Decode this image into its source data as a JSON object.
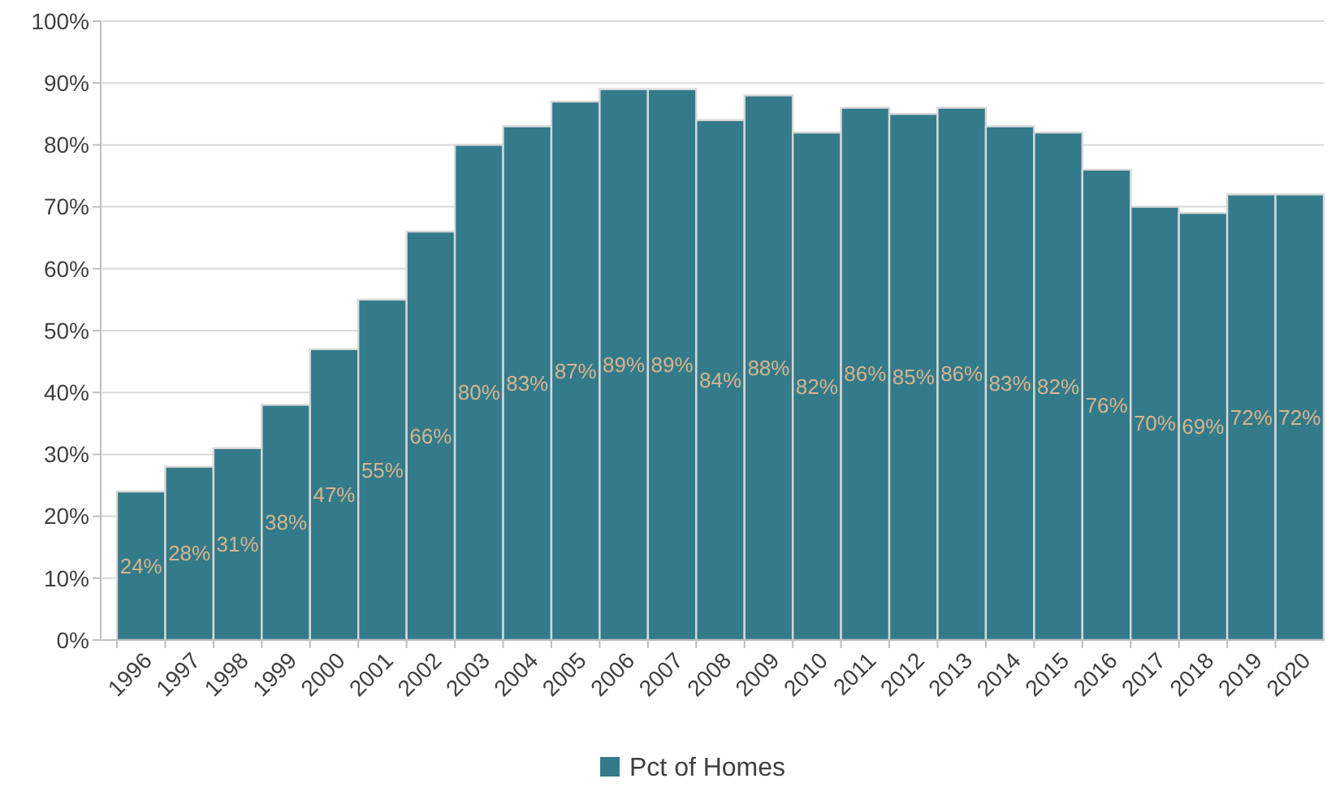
{
  "chart_data": {
    "type": "bar",
    "categories": [
      "1996",
      "1997",
      "1998",
      "1999",
      "2000",
      "2001",
      "2002",
      "2003",
      "2004",
      "2005",
      "2006",
      "2007",
      "2008",
      "2009",
      "2010",
      "2011",
      "2012",
      "2013",
      "2014",
      "2015",
      "2016",
      "2017",
      "2018",
      "2019",
      "2020"
    ],
    "series": [
      {
        "name": "Pct of Homes",
        "color": "#337b8a",
        "values": [
          24,
          28,
          31,
          38,
          47,
          55,
          66,
          80,
          83,
          87,
          89,
          89,
          84,
          88,
          82,
          86,
          85,
          86,
          83,
          82,
          76,
          70,
          69,
          72,
          72
        ],
        "value_labels": [
          "24%",
          "28%",
          "31%",
          "38%",
          "47%",
          "55%",
          "66%",
          "80%",
          "83%",
          "87%",
          "89%",
          "89%",
          "84%",
          "88%",
          "82%",
          "86%",
          "85%",
          "86%",
          "83%",
          "82%",
          "76%",
          "70%",
          "69%",
          "72%",
          "72%"
        ]
      }
    ],
    "ylim": [
      0,
      100
    ],
    "yticks": [
      {
        "value": 0,
        "label": "0%"
      },
      {
        "value": 10,
        "label": "10%"
      },
      {
        "value": 20,
        "label": "20%"
      },
      {
        "value": 30,
        "label": "30%"
      },
      {
        "value": 40,
        "label": "40%"
      },
      {
        "value": 50,
        "label": "50%"
      },
      {
        "value": 60,
        "label": "60%"
      },
      {
        "value": 70,
        "label": "70%"
      },
      {
        "value": 80,
        "label": "80%"
      },
      {
        "value": 90,
        "label": "90%"
      },
      {
        "value": 100,
        "label": "100%"
      }
    ],
    "grid": "y",
    "legend": "bottom"
  }
}
